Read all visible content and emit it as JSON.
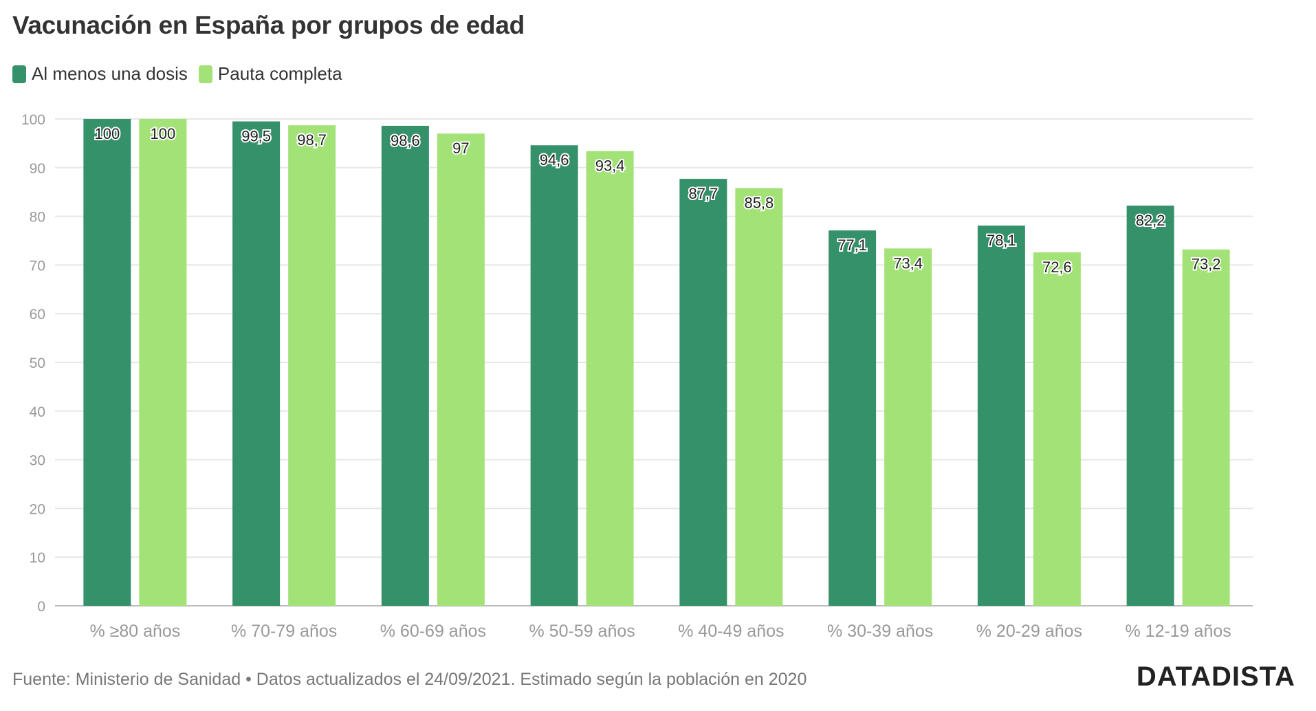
{
  "title": "Vacunación en España por grupos de edad",
  "footer": "Fuente: Ministerio de Sanidad • Datos actualizados el 24/09/2021. Estimado según la población en 2020",
  "brand": "DATADISTA",
  "chart_data": {
    "type": "bar",
    "title": "Vacunación en España por grupos de edad",
    "categories": [
      "% ≥80 años",
      "% 70-79 años",
      "% 60-69 años",
      "% 50-59 años",
      "% 40-49 años",
      "% 30-39 años",
      "% 20-29 años",
      "% 12-19 años"
    ],
    "series": [
      {
        "name": "Al menos una dosis",
        "color": "#35916a",
        "values": [
          100,
          99.5,
          98.6,
          94.6,
          87.7,
          77.1,
          78.1,
          82.2
        ],
        "labels": [
          "100",
          "99,5",
          "98,6",
          "94,6",
          "87,7",
          "77,1",
          "78,1",
          "82,2"
        ]
      },
      {
        "name": "Pauta completa",
        "color": "#a3e277",
        "values": [
          100,
          98.7,
          97,
          93.4,
          85.8,
          73.4,
          72.6,
          73.2
        ],
        "labels": [
          "100",
          "98,7",
          "97",
          "93,4",
          "85,8",
          "73,4",
          "72,6",
          "73,2"
        ]
      }
    ],
    "y_ticks": [
      "0",
      "10",
      "20",
      "30",
      "40",
      "50",
      "60",
      "70",
      "80",
      "90",
      "100"
    ],
    "ylim": [
      0,
      100
    ],
    "grid": true,
    "legend": "top-left"
  }
}
